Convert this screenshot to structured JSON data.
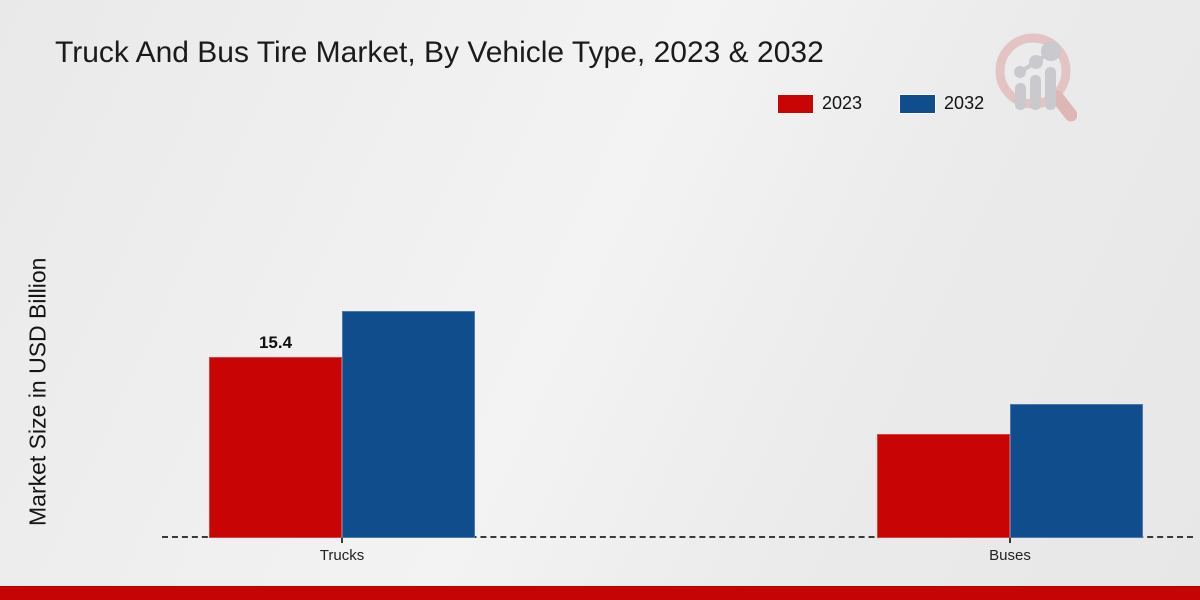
{
  "title": "Truck And Bus Tire Market, By Vehicle Type, 2023 & 2032",
  "ylabel": "Market Size in USD Billion",
  "legend": [
    {
      "label": "2023",
      "color": "#c90404"
    },
    {
      "label": "2032",
      "color": "#0f4d8c"
    }
  ],
  "branding": {
    "logo_icon": "magnifier-bar-chart-logo",
    "footer_color": "#c50505",
    "logo_ring_color": "#e3bdbd",
    "logo_bar_color": "#c5c5ca"
  },
  "chart_data": {
    "type": "bar",
    "categories": [
      "Trucks",
      "Buses"
    ],
    "series": [
      {
        "name": "2023",
        "color": "#c90404",
        "values": [
          15.4,
          8.8
        ]
      },
      {
        "name": "2032",
        "color": "#0f4d8c",
        "values": [
          19.3,
          11.4
        ]
      }
    ],
    "annotations": [
      {
        "series": "2023",
        "category": "Trucks",
        "text": "15.4"
      }
    ],
    "title": "Truck And Bus Tire Market, By Vehicle Type, 2023 & 2032",
    "xlabel": "",
    "ylabel": "Market Size in USD Billion",
    "ylim": [
      0,
      23.5
    ],
    "grid": false,
    "legend_position": "top-right",
    "baseline_style": "dashed"
  }
}
